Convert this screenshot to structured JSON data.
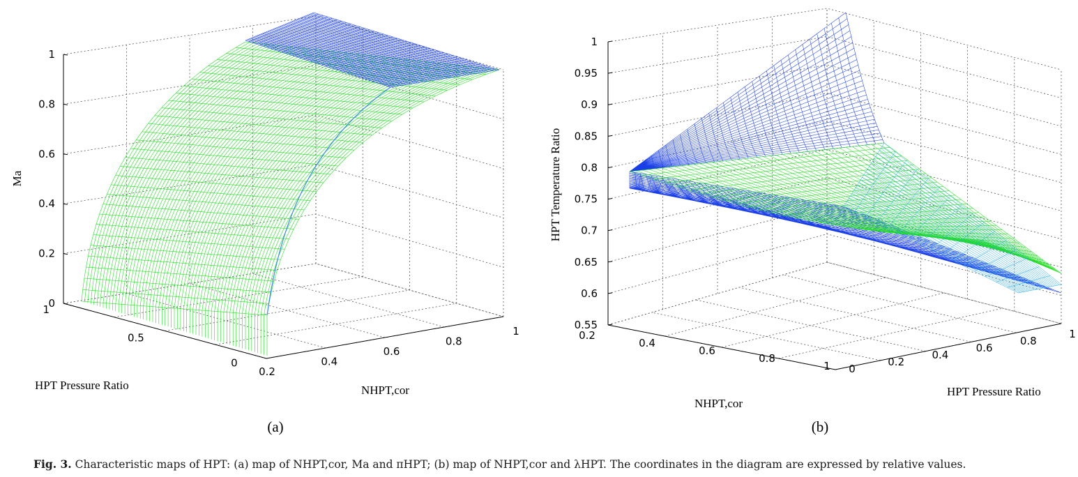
{
  "caption": {
    "label": "Fig. 3.",
    "text": "Characteristic maps of HPT: (a) map of NHPT,cor, Ma and πHPT; (b) map of NHPT,cor and λHPT. The coordinates in the diagram are expressed by relative values."
  },
  "colors": {
    "mesh_green": "#22dd22",
    "mesh_blue": "#1a3fe6",
    "grid": "#000000"
  },
  "chart_data": [
    {
      "panel": "(a)",
      "type": "surface",
      "zlabel": "Ma",
      "xlabel": "HPT Pressure Ratio",
      "ylabel": "NHPT,cor",
      "z_ticks": [
        "0",
        "0.2",
        "0.4",
        "0.6",
        "0.8",
        "1"
      ],
      "x_ticks": [
        "1",
        "0.5",
        "0"
      ],
      "y_ticks": [
        "0.2",
        "0.4",
        "0.6",
        "0.8",
        "1"
      ],
      "xlim": [
        0,
        1
      ],
      "ylim": [
        0.2,
        1
      ],
      "zlim": [
        0,
        1
      ],
      "series": [
        {
          "color": "green",
          "description_values": {
            "pressure_ratio": [
              0,
              0.25,
              0.5,
              0.75,
              1.0
            ],
            "ma": [
              0.0,
              0.55,
              0.82,
              0.93,
              1.0
            ]
          }
        },
        {
          "color": "blue",
          "description_values": {
            "pressure_ratio": [
              0.9,
              1.0
            ],
            "ma": [
              1.0,
              1.0
            ]
          }
        }
      ]
    },
    {
      "panel": "(b)",
      "type": "surface",
      "zlabel": "HPT Temperature Ratio",
      "xlabel": "NHPT,cor",
      "ylabel": "HPT Pressure Ratio",
      "z_ticks": [
        "0.55",
        "0.6",
        "0.65",
        "0.7",
        "0.75",
        "0.8",
        "0.85",
        "0.9",
        "0.95",
        "1"
      ],
      "x_ticks": [
        "0.2",
        "0.4",
        "0.6",
        "0.8",
        "1"
      ],
      "y_ticks": [
        "0",
        "0.2",
        "0.4",
        "0.6",
        "0.8",
        "1"
      ],
      "xlim": [
        0.2,
        1
      ],
      "ylim": [
        0,
        1
      ],
      "zlim": [
        0.55,
        1
      ],
      "series": [
        {
          "color": "blue",
          "description_values": {
            "corner_nhpt_0.2": 0.8,
            "corner_max": 1.0,
            "far_min": 0.6
          }
        },
        {
          "color": "green",
          "description_values": {
            "corner_nhpt_0.2": 0.8,
            "far_edge": 0.63
          }
        }
      ]
    }
  ],
  "subplot_labels": [
    "(a)",
    "(b)"
  ]
}
